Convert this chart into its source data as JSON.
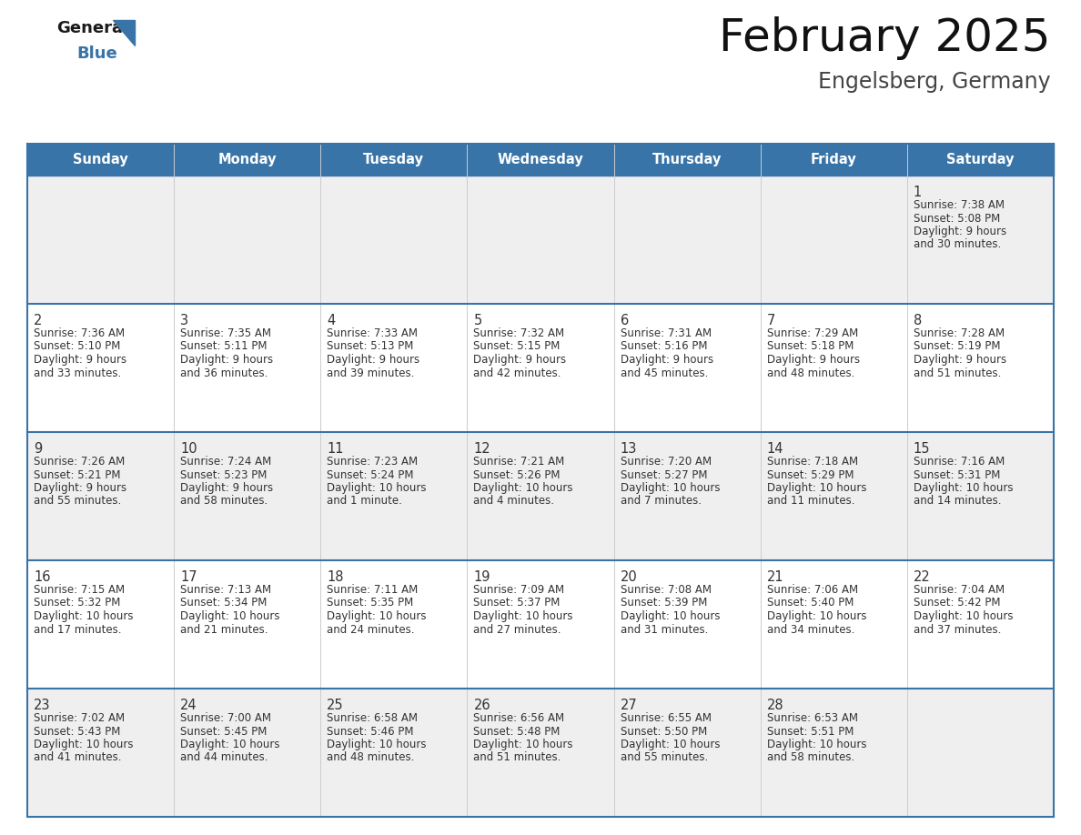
{
  "title": "February 2025",
  "subtitle": "Engelsberg, Germany",
  "header_color": "#3874a8",
  "header_text_color": "#ffffff",
  "day_names": [
    "Sunday",
    "Monday",
    "Tuesday",
    "Wednesday",
    "Thursday",
    "Friday",
    "Saturday"
  ],
  "cell_bg_white": "#ffffff",
  "cell_bg_gray": "#efefef",
  "day_num_color": "#333333",
  "text_color": "#333333",
  "line_color": "#3874a8",
  "logo_black": "#1a1a1a",
  "logo_blue": "#3874a8",
  "calendar_data": [
    [
      null,
      null,
      null,
      null,
      null,
      null,
      {
        "day": "1",
        "sunrise": "7:38 AM",
        "sunset": "5:08 PM",
        "daylight": "9 hours",
        "daylight2": "and 30 minutes."
      }
    ],
    [
      {
        "day": "2",
        "sunrise": "7:36 AM",
        "sunset": "5:10 PM",
        "daylight": "9 hours",
        "daylight2": "and 33 minutes."
      },
      {
        "day": "3",
        "sunrise": "7:35 AM",
        "sunset": "5:11 PM",
        "daylight": "9 hours",
        "daylight2": "and 36 minutes."
      },
      {
        "day": "4",
        "sunrise": "7:33 AM",
        "sunset": "5:13 PM",
        "daylight": "9 hours",
        "daylight2": "and 39 minutes."
      },
      {
        "day": "5",
        "sunrise": "7:32 AM",
        "sunset": "5:15 PM",
        "daylight": "9 hours",
        "daylight2": "and 42 minutes."
      },
      {
        "day": "6",
        "sunrise": "7:31 AM",
        "sunset": "5:16 PM",
        "daylight": "9 hours",
        "daylight2": "and 45 minutes."
      },
      {
        "day": "7",
        "sunrise": "7:29 AM",
        "sunset": "5:18 PM",
        "daylight": "9 hours",
        "daylight2": "and 48 minutes."
      },
      {
        "day": "8",
        "sunrise": "7:28 AM",
        "sunset": "5:19 PM",
        "daylight": "9 hours",
        "daylight2": "and 51 minutes."
      }
    ],
    [
      {
        "day": "9",
        "sunrise": "7:26 AM",
        "sunset": "5:21 PM",
        "daylight": "9 hours",
        "daylight2": "and 55 minutes."
      },
      {
        "day": "10",
        "sunrise": "7:24 AM",
        "sunset": "5:23 PM",
        "daylight": "9 hours",
        "daylight2": "and 58 minutes."
      },
      {
        "day": "11",
        "sunrise": "7:23 AM",
        "sunset": "5:24 PM",
        "daylight": "10 hours",
        "daylight2": "and 1 minute."
      },
      {
        "day": "12",
        "sunrise": "7:21 AM",
        "sunset": "5:26 PM",
        "daylight": "10 hours",
        "daylight2": "and 4 minutes."
      },
      {
        "day": "13",
        "sunrise": "7:20 AM",
        "sunset": "5:27 PM",
        "daylight": "10 hours",
        "daylight2": "and 7 minutes."
      },
      {
        "day": "14",
        "sunrise": "7:18 AM",
        "sunset": "5:29 PM",
        "daylight": "10 hours",
        "daylight2": "and 11 minutes."
      },
      {
        "day": "15",
        "sunrise": "7:16 AM",
        "sunset": "5:31 PM",
        "daylight": "10 hours",
        "daylight2": "and 14 minutes."
      }
    ],
    [
      {
        "day": "16",
        "sunrise": "7:15 AM",
        "sunset": "5:32 PM",
        "daylight": "10 hours",
        "daylight2": "and 17 minutes."
      },
      {
        "day": "17",
        "sunrise": "7:13 AM",
        "sunset": "5:34 PM",
        "daylight": "10 hours",
        "daylight2": "and 21 minutes."
      },
      {
        "day": "18",
        "sunrise": "7:11 AM",
        "sunset": "5:35 PM",
        "daylight": "10 hours",
        "daylight2": "and 24 minutes."
      },
      {
        "day": "19",
        "sunrise": "7:09 AM",
        "sunset": "5:37 PM",
        "daylight": "10 hours",
        "daylight2": "and 27 minutes."
      },
      {
        "day": "20",
        "sunrise": "7:08 AM",
        "sunset": "5:39 PM",
        "daylight": "10 hours",
        "daylight2": "and 31 minutes."
      },
      {
        "day": "21",
        "sunrise": "7:06 AM",
        "sunset": "5:40 PM",
        "daylight": "10 hours",
        "daylight2": "and 34 minutes."
      },
      {
        "day": "22",
        "sunrise": "7:04 AM",
        "sunset": "5:42 PM",
        "daylight": "10 hours",
        "daylight2": "and 37 minutes."
      }
    ],
    [
      {
        "day": "23",
        "sunrise": "7:02 AM",
        "sunset": "5:43 PM",
        "daylight": "10 hours",
        "daylight2": "and 41 minutes."
      },
      {
        "day": "24",
        "sunrise": "7:00 AM",
        "sunset": "5:45 PM",
        "daylight": "10 hours",
        "daylight2": "and 44 minutes."
      },
      {
        "day": "25",
        "sunrise": "6:58 AM",
        "sunset": "5:46 PM",
        "daylight": "10 hours",
        "daylight2": "and 48 minutes."
      },
      {
        "day": "26",
        "sunrise": "6:56 AM",
        "sunset": "5:48 PM",
        "daylight": "10 hours",
        "daylight2": "and 51 minutes."
      },
      {
        "day": "27",
        "sunrise": "6:55 AM",
        "sunset": "5:50 PM",
        "daylight": "10 hours",
        "daylight2": "and 55 minutes."
      },
      {
        "day": "28",
        "sunrise": "6:53 AM",
        "sunset": "5:51 PM",
        "daylight": "10 hours",
        "daylight2": "and 58 minutes."
      },
      null
    ]
  ]
}
